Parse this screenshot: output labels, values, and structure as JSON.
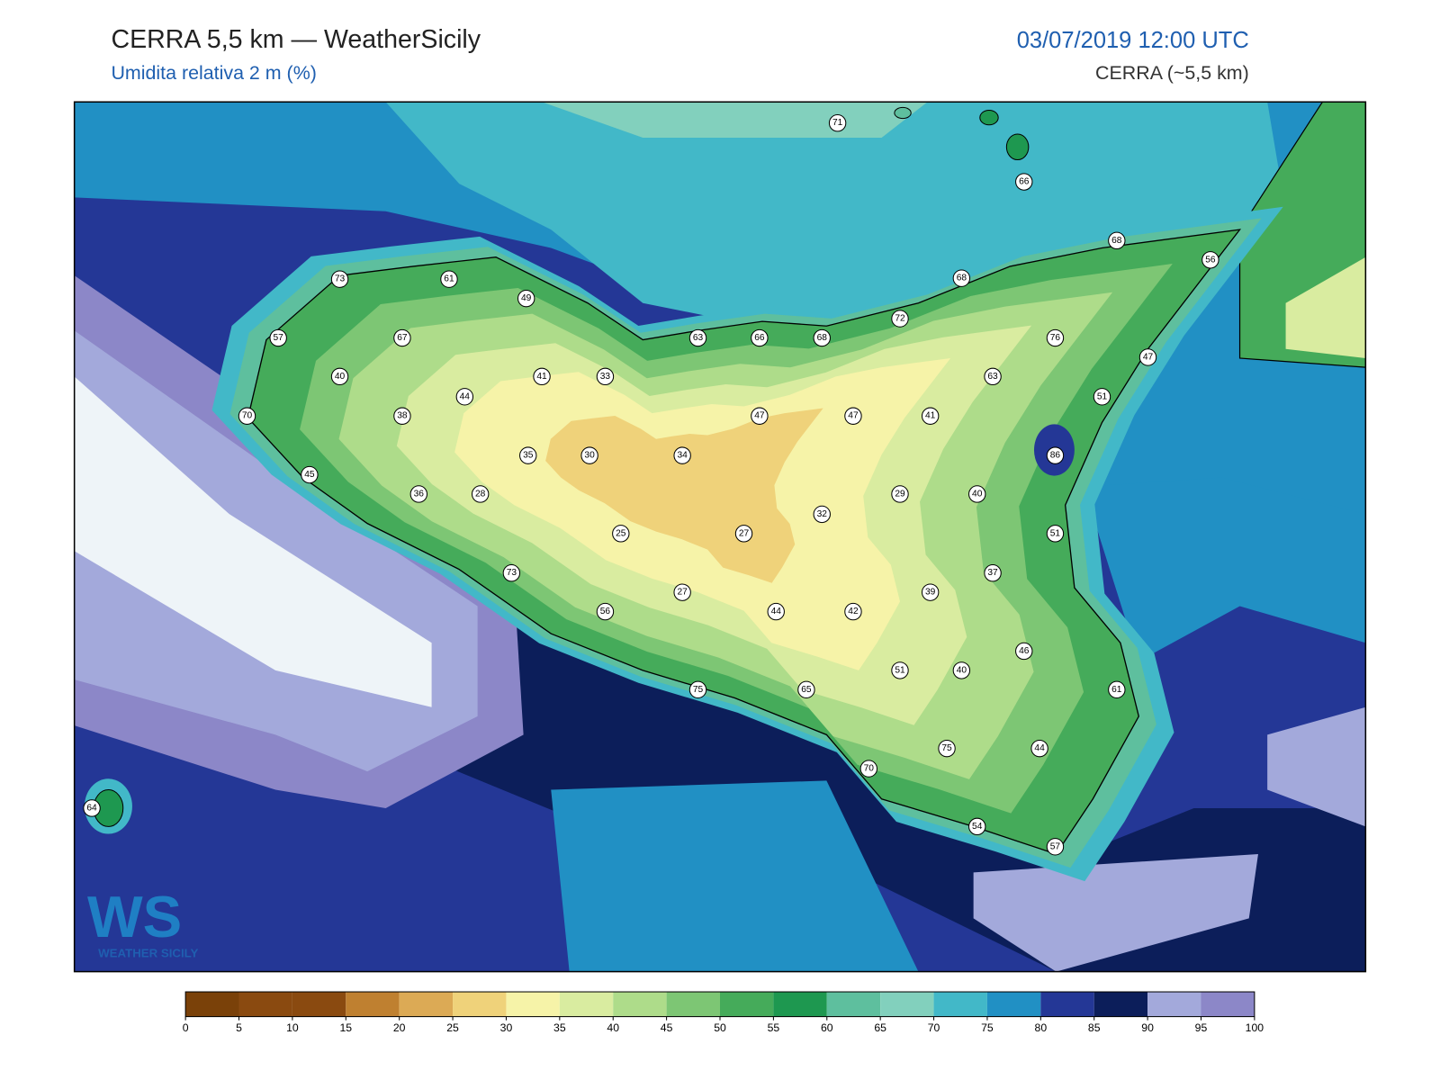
{
  "header": {
    "title": "CERRA 5,5 km — WeatherSicily",
    "subtitle": "Umidita relativa 2 m (%)",
    "date": "03/07/2019 12:00 UTC",
    "model": "CERRA (~5,5 km)"
  },
  "logo": {
    "mark": "WS",
    "name": "WEATHER SICILY"
  },
  "stations": [
    71,
    66,
    68,
    56,
    73,
    61,
    49,
    68,
    72,
    57,
    67,
    63,
    66,
    68,
    76,
    40,
    41,
    33,
    63,
    47,
    44,
    51,
    70,
    38,
    47,
    47,
    41,
    35,
    30,
    34,
    86,
    45,
    36,
    28,
    29,
    40,
    32,
    25,
    27,
    51,
    73,
    37,
    27,
    39,
    56,
    44,
    42,
    46,
    51,
    40,
    61,
    75,
    65,
    75,
    44,
    70,
    54,
    57,
    64
  ],
  "colorbar": {
    "bounds": [
      0,
      5,
      10,
      15,
      20,
      25,
      30,
      35,
      40,
      45,
      50,
      55,
      60,
      65,
      70,
      75,
      80,
      85,
      90,
      95,
      100
    ],
    "colors": [
      "#7a4109",
      "#8a4a10",
      "#8a4a10",
      "#bf8030",
      "#dcaa55",
      "#efd27a",
      "#f6f3a8",
      "#d9eca0",
      "#aedc8a",
      "#7dc674",
      "#45ab5a",
      "#1e9850",
      "#5ebf9e",
      "#82d0bd",
      "#42b8c8",
      "#2190c4",
      "#243796",
      "#0c1e5a",
      "#a3a9db",
      "#8c87c8"
    ]
  }
}
